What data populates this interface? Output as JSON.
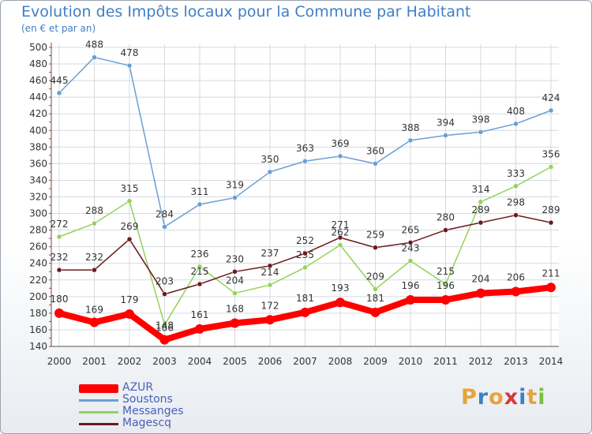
{
  "header": {
    "title": "Evolution des Impôts locaux pour la Commune par Habitant",
    "subtitle": "(en € et par an)"
  },
  "logo": {
    "text": "Proxiti",
    "colors": [
      "#e8a33d",
      "#3f7fc4",
      "#e8a33d",
      "#d43a3a",
      "#3f7fc4",
      "#e8a33d",
      "#7cbf3a"
    ]
  },
  "chart_data": {
    "type": "line",
    "title": "Evolution des Impôts locaux pour la Commune par Habitant",
    "subtitle": "(en € et par an)",
    "x": [
      "2000",
      "2001",
      "2002",
      "2003",
      "2004",
      "2005",
      "2006",
      "2007",
      "2008",
      "2009",
      "2010",
      "2011",
      "2012",
      "2013",
      "2014"
    ],
    "ylim": [
      140,
      500
    ],
    "yticks": [
      140,
      160,
      180,
      200,
      220,
      240,
      260,
      280,
      300,
      320,
      340,
      360,
      380,
      400,
      420,
      440,
      460,
      480,
      500
    ],
    "grid": true,
    "legend_position": "bottom-left",
    "series": [
      {
        "name": "AZUR",
        "color": "#ff0000",
        "values": [
          180,
          169,
          179,
          148,
          161,
          168,
          172,
          181,
          193,
          181,
          196,
          196,
          204,
          206,
          211
        ]
      },
      {
        "name": "Soustons",
        "color": "#6b9fd4",
        "values": [
          445,
          488,
          478,
          284,
          311,
          319,
          350,
          363,
          369,
          360,
          388,
          394,
          398,
          408,
          424
        ]
      },
      {
        "name": "Messanges",
        "color": "#93d35a",
        "values": [
          272,
          288,
          315,
          166,
          236,
          204,
          214,
          235,
          262,
          209,
          243,
          215,
          314,
          333,
          356
        ]
      },
      {
        "name": "Magescq",
        "color": "#6b1a1f",
        "values": [
          232,
          232,
          269,
          203,
          215,
          230,
          237,
          252,
          271,
          259,
          265,
          280,
          289,
          298,
          289
        ]
      }
    ]
  }
}
